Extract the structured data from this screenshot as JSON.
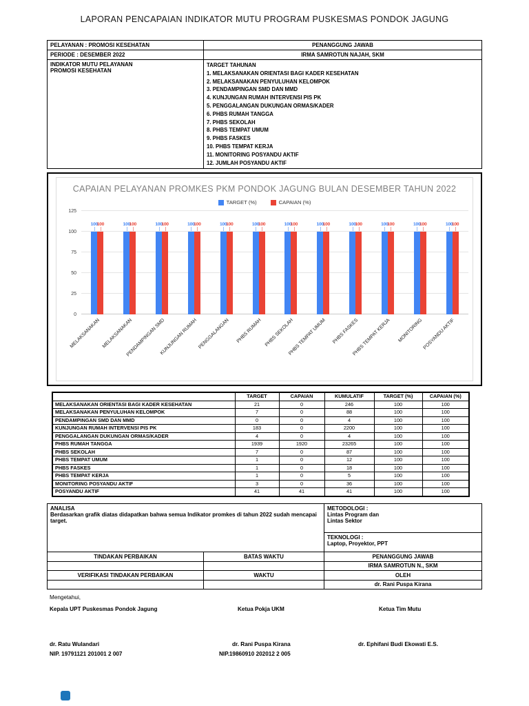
{
  "page": {
    "title": "LAPORAN PENCAPAIAN INDIKATOR MUTU PROGRAM PUSKESMAS PONDOK JAGUNG"
  },
  "header_table": {
    "pelayanan_label": "PELAYANAN :",
    "pelayanan_value": "PROMOSI KESEHATAN",
    "periode_label": "PERIODE   :",
    "periode_value": "DESEMBER 2022",
    "penanggung_jawab_header": "PENANGGUNG JAWAB",
    "penanggung_jawab_name": "IRMA SAMROTUN NAJAH, SKM",
    "indikator_label": "INDIKATOR MUTU PELAYANAN\nPROMOSI KESEHATAN",
    "target_tahunan_label": "TARGET TAHUNAN",
    "target_items": [
      "1. MELAKSANAKAN ORIENTASI BAGI KADER KESEHATAN",
      "2. MELAKSANAKAN PENYULUHAN KELOMPOK",
      "3. PENDAMPINGAN SMD DAN MMD",
      "4. KUNJUNGAN RUMAH INTERVENSI PIS PK",
      "5. PENGGALANGAN DUKUNGAN ORMAS/KADER",
      "6. PHBS RUMAH TANGGA",
      "7. PHBS SEKOLAH",
      "8. PHBS TEMPAT UMUM",
      "9. PHBS FASKES",
      "10. PHBS TEMPAT KERJA",
      "11. MONITORING POSYANDU AKTIF",
      "12. JUMLAH POSYANDU AKTIF"
    ]
  },
  "chart_data": {
    "type": "bar",
    "title": "CAPAIAN PELAYANAN PROMKES PKM PONDOK JAGUNG BULAN DESEMBER TAHUN 2022",
    "categories": [
      "MELAKSANAKAN",
      "MELAKSANAKAN",
      "PENDAMPINGAN SMD",
      "KUNJUNGAN RUMAH",
      "PENGGALANGAN",
      "PHBS RUMAH",
      "PHBS SEKOLAH",
      "PHBS TEMPAT UMUM",
      "PHBS FASKES",
      "PHBS TEMPAT KERJA",
      "MONITORING",
      "POSYANDU AKTIF"
    ],
    "series": [
      {
        "name": "TARGET (%)",
        "color": "#4285f4",
        "values": [
          100,
          100,
          100,
          100,
          100,
          100,
          100,
          100,
          100,
          100,
          100,
          100
        ]
      },
      {
        "name": "CAPAIAN (%)",
        "color": "#ea4335",
        "values": [
          100,
          100,
          100,
          100,
          100,
          100,
          100,
          100,
          100,
          100,
          100,
          100
        ]
      }
    ],
    "ylim": [
      0,
      125
    ],
    "yticks": [
      0,
      25,
      50,
      75,
      100,
      125
    ],
    "grid": true,
    "legend_position": "top",
    "data_labels": true
  },
  "indicator_table": {
    "columns": [
      "",
      "TARGET",
      "CAPAIAN",
      "KUMULATIF",
      "TARGET (%)",
      "CAPAIAN (%)"
    ],
    "rows": [
      [
        "MELAKSANAKAN ORIENTASI BAGI KADER KESEHATAN",
        "21",
        "0",
        "246",
        "100",
        "100"
      ],
      [
        "MELAKSANAKAN PENYULUHAN KELOMPOK",
        "7",
        "0",
        "88",
        "100",
        "100"
      ],
      [
        "PENDAMPINGAN SMD DAN MMD",
        "0",
        "0",
        "4",
        "100",
        "100"
      ],
      [
        "KUNJUNGAN RUMAH INTERVENSI PIS PK",
        "183",
        "0",
        "2200",
        "100",
        "100"
      ],
      [
        "PENGGALANGAN DUKUNGAN ORMAS/KADER",
        "4",
        "0",
        "4",
        "100",
        "100"
      ],
      [
        "PHBS RUMAH TANGGA",
        "1939",
        "1920",
        "23265",
        "100",
        "100"
      ],
      [
        "PHBS SEKOLAH",
        "7",
        "0",
        "87",
        "100",
        "100"
      ],
      [
        "PHBS TEMPAT UMUM",
        "1",
        "0",
        "12",
        "100",
        "100"
      ],
      [
        "PHBS FASKES",
        "1",
        "0",
        "18",
        "100",
        "100"
      ],
      [
        "PHBS TEMPAT KERJA",
        "1",
        "0",
        "5",
        "100",
        "100"
      ],
      [
        "MONITORING POSYANDU AKTIF",
        "3",
        "0",
        "36",
        "100",
        "100"
      ],
      [
        "POSYANDU AKTIF",
        "41",
        "41",
        "41",
        "100",
        "100"
      ]
    ]
  },
  "analisa": {
    "label": "ANALISA",
    "text": "Berdasarkan grafik diatas didapatkan bahwa semua Indikator promkes di tahun 2022 sudah mencapai target.",
    "metodologi_label": "METODOLOGI :",
    "metodologi_value": "Lintas Program dan\nLintas Sektor",
    "teknologi_label": "TEKNOLOGI :",
    "teknologi_value": "Laptop, Proyektor, PPT"
  },
  "action_table": {
    "tindakan_label": "TINDAKAN PERBAIKAN",
    "batas_waktu_label": "BATAS WAKTU",
    "penanggung_jawab_label": "PENANGGUNG JAWAB",
    "penanggung_jawab_value": "IRMA SAMROTUN N., SKM",
    "verifikasi_label": "VERIFIKASI TINDAKAN PERBAIKAN",
    "waktu_label": "WAKTU",
    "oleh_label": "OLEH",
    "oleh_value": "dr. Rani Puspa Kirana"
  },
  "footer": {
    "mengetahui": "Mengetahui,",
    "signatories": [
      {
        "role": "Kepala UPT Puskesmas Pondok Jagung",
        "name": "dr. Ratu Wulandari",
        "nip": "NIP. 19791121 201001 2 007"
      },
      {
        "role": "Ketua Pokja UKM",
        "name": "dr. Rani Puspa Kirana",
        "nip": "NIP.19860910 202012 2 005"
      },
      {
        "role": "Ketua Tim Mutu",
        "name": "dr. Ephifani Budi Ekowati E.S.",
        "nip": ""
      }
    ]
  },
  "branding": {
    "corner_logo_color": "#1d76bb"
  }
}
